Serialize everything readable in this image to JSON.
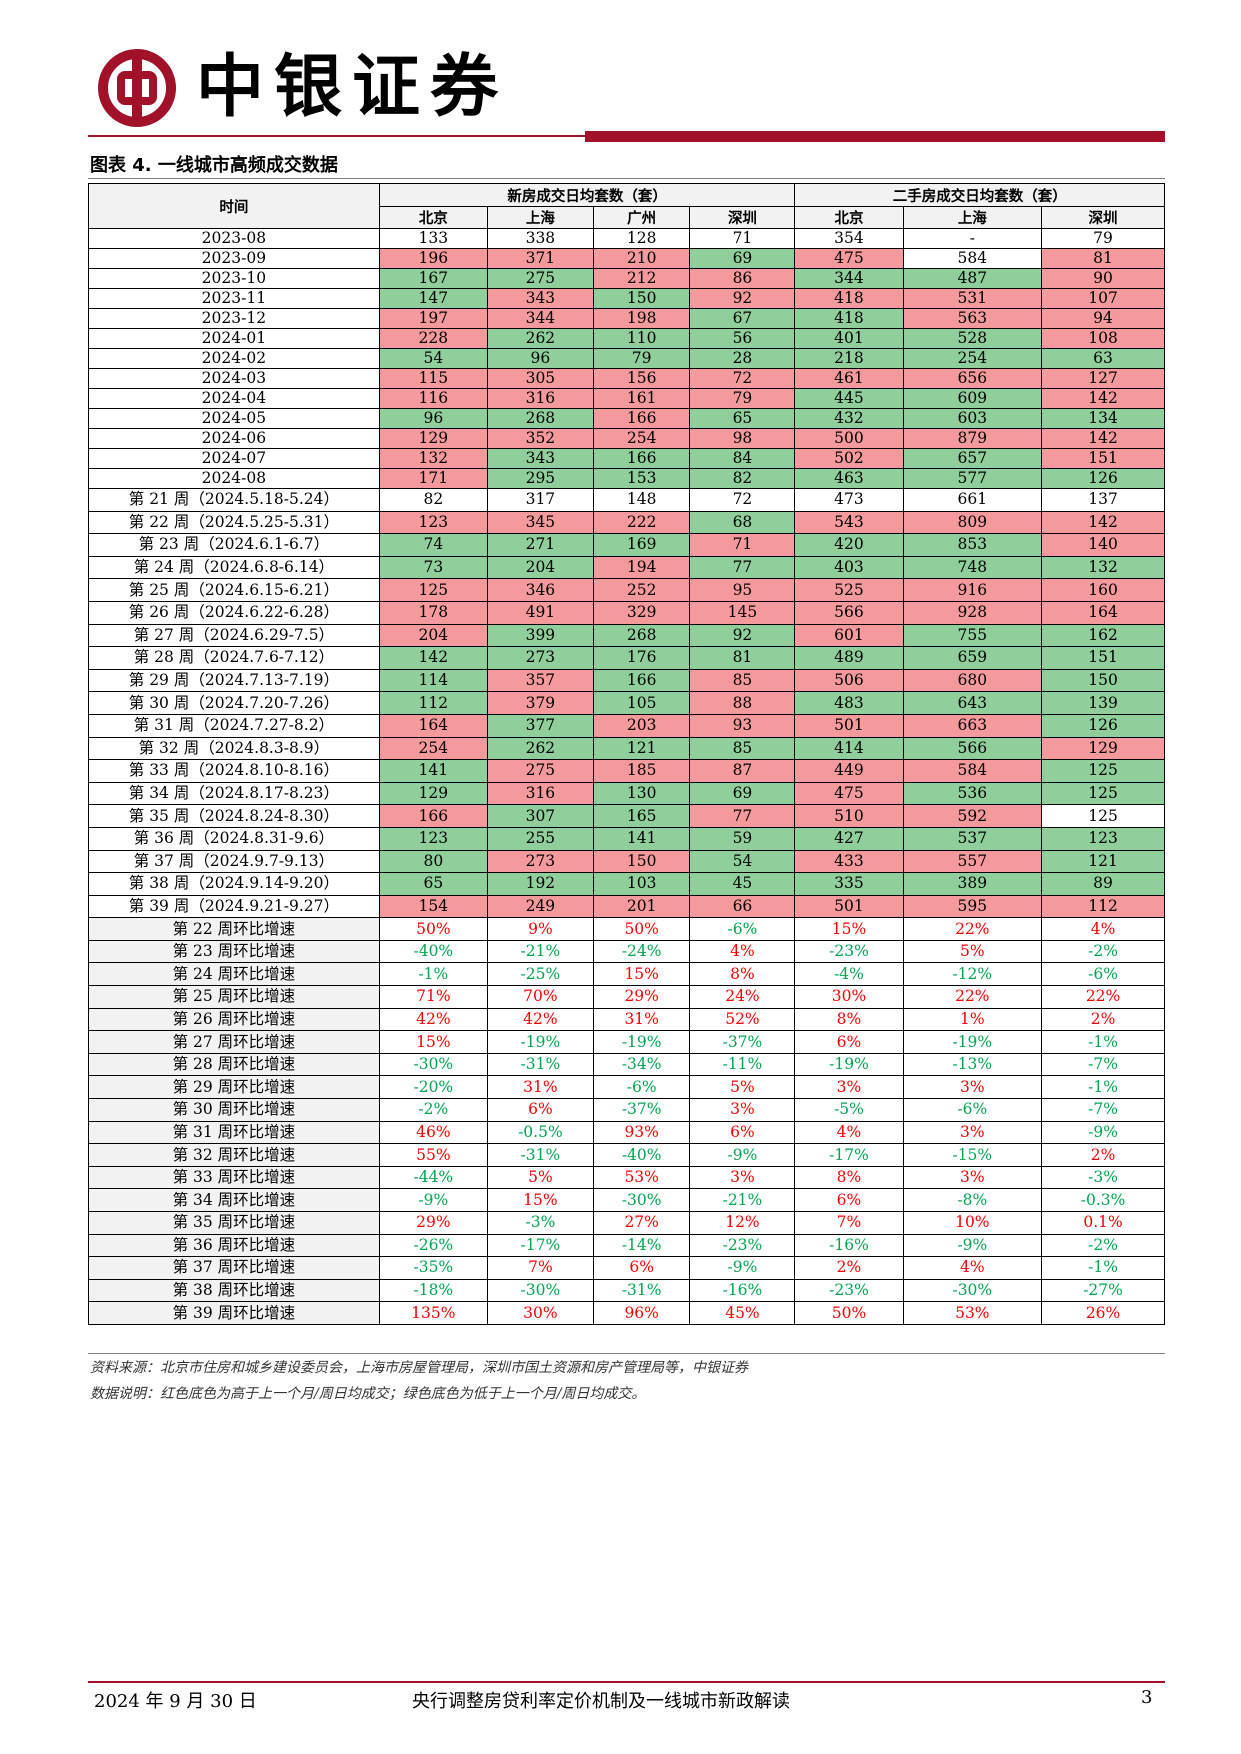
{
  "header": {
    "brand": "中银证券",
    "logo_icon": "bank-of-china-logo-icon",
    "accent_color": "#a1122a"
  },
  "figure": {
    "title": "图表 4. 一线城市高频成交数据"
  },
  "table": {
    "time_header": "时间",
    "group_new": "新房成交日均套数（套）",
    "group_second": "二手房成交日均套数（套）",
    "cities_new": [
      "北京",
      "上海",
      "广州",
      "深圳"
    ],
    "cities_second": [
      "北京",
      "上海",
      "深圳"
    ],
    "colors": {
      "higher": "#f4999c",
      "lower": "#90cf9c",
      "positive_text": "#ff0000",
      "negative_text": "#00a650"
    },
    "monthly": [
      {
        "label": "2023-08",
        "values": [
          "133",
          "338",
          "128",
          "71",
          "354",
          "-",
          "79"
        ],
        "c": "nnnnnnn"
      },
      {
        "label": "2023-09",
        "values": [
          "196",
          "371",
          "210",
          "69",
          "475",
          "584",
          "81"
        ],
        "c": "uuudunu"
      },
      {
        "label": "2023-10",
        "values": [
          "167",
          "275",
          "212",
          "86",
          "344",
          "487",
          "90"
        ],
        "c": "dduuddu"
      },
      {
        "label": "2023-11",
        "values": [
          "147",
          "343",
          "150",
          "92",
          "418",
          "531",
          "107"
        ],
        "c": "duduuuu"
      },
      {
        "label": "2023-12",
        "values": [
          "197",
          "344",
          "198",
          "67",
          "418",
          "563",
          "94"
        ],
        "c": "uuudduu"
      },
      {
        "label": "2024-01",
        "values": [
          "228",
          "262",
          "110",
          "56",
          "401",
          "528",
          "108"
        ],
        "c": "udddddu"
      },
      {
        "label": "2024-02",
        "values": [
          "54",
          "96",
          "79",
          "28",
          "218",
          "254",
          "63"
        ],
        "c": "ddddddd"
      },
      {
        "label": "2024-03",
        "values": [
          "115",
          "305",
          "156",
          "72",
          "461",
          "656",
          "127"
        ],
        "c": "uuuuuuu"
      },
      {
        "label": "2024-04",
        "values": [
          "116",
          "316",
          "161",
          "79",
          "445",
          "609",
          "142"
        ],
        "c": "uuuudduu"
      },
      {
        "label": "2024-05",
        "values": [
          "96",
          "268",
          "166",
          "65",
          "432",
          "603",
          "134"
        ],
        "c": "ddudddd"
      },
      {
        "label": "2024-06",
        "values": [
          "129",
          "352",
          "254",
          "98",
          "500",
          "879",
          "142"
        ],
        "c": "uuuuuuu"
      },
      {
        "label": "2024-07",
        "values": [
          "132",
          "343",
          "166",
          "84",
          "502",
          "657",
          "151"
        ],
        "c": "udddudu"
      },
      {
        "label": "2024-08",
        "values": [
          "171",
          "295",
          "153",
          "82",
          "463",
          "577",
          "126"
        ],
        "c": "udddddd"
      }
    ],
    "weekly": [
      {
        "label": "第 21 周（2024.5.18-5.24）",
        "values": [
          "82",
          "317",
          "148",
          "72",
          "473",
          "661",
          "137"
        ],
        "c": "nnnnnnn"
      },
      {
        "label": "第 22 周（2024.5.25-5.31）",
        "values": [
          "123",
          "345",
          "222",
          "68",
          "543",
          "809",
          "142"
        ],
        "c": "uuudu uu"
      },
      {
        "label": "第 23 周（2024.6.1-6.7）",
        "values": [
          "74",
          "271",
          "169",
          "71",
          "420",
          "853",
          "140"
        ],
        "c": "ddduddud"
      },
      {
        "label": "第 24 周（2024.6.8-6.14）",
        "values": [
          "73",
          "204",
          "194",
          "77",
          "403",
          "748",
          "132"
        ],
        "c": "ddudddd"
      },
      {
        "label": "第 25 周（2024.6.15-6.21）",
        "values": [
          "125",
          "346",
          "252",
          "95",
          "525",
          "916",
          "160"
        ],
        "c": "uuuuuuu"
      },
      {
        "label": "第 26 周（2024.6.22-6.28）",
        "values": [
          "178",
          "491",
          "329",
          "145",
          "566",
          "928",
          "164"
        ],
        "c": "uuuuuuu"
      },
      {
        "label": "第 27 周（2024.6.29-7.5）",
        "values": [
          "204",
          "399",
          "268",
          "92",
          "601",
          "755",
          "162"
        ],
        "c": "uddduddd"
      },
      {
        "label": "第 28 周（2024.7.6-7.12）",
        "values": [
          "142",
          "273",
          "176",
          "81",
          "489",
          "659",
          "151"
        ],
        "c": "ddddddd"
      },
      {
        "label": "第 29 周（2024.7.13-7.19）",
        "values": [
          "114",
          "357",
          "166",
          "85",
          "506",
          "680",
          "150"
        ],
        "c": "duduuud"
      },
      {
        "label": "第 30 周（2024.7.20-7.26）",
        "values": [
          "112",
          "379",
          "105",
          "88",
          "483",
          "643",
          "139"
        ],
        "c": "dududdd"
      },
      {
        "label": "第 31 周（2024.7.27-8.2）",
        "values": [
          "164",
          "377",
          "203",
          "93",
          "501",
          "663",
          "126"
        ],
        "c": "uduuuud"
      },
      {
        "label": "第 32 周（2024.8.3-8.9）",
        "values": [
          "254",
          "262",
          "121",
          "85",
          "414",
          "566",
          "129"
        ],
        "c": "udddddu"
      },
      {
        "label": "第 33 周（2024.8.10-8.16）",
        "values": [
          "141",
          "275",
          "185",
          "87",
          "449",
          "584",
          "125"
        ],
        "c": "duuuuud"
      },
      {
        "label": "第 34 周（2024.8.17-8.23）",
        "values": [
          "129",
          "316",
          "130",
          "69",
          "475",
          "536",
          "125"
        ],
        "c": "dudduddd"
      },
      {
        "label": "第 35 周（2024.8.24-8.30）",
        "values": [
          "166",
          "307",
          "165",
          "77",
          "510",
          "592",
          "125"
        ],
        "c": "udduuun"
      },
      {
        "label": "第 36 周（2024.8.31-9.6）",
        "values": [
          "123",
          "255",
          "141",
          "59",
          "427",
          "537",
          "123"
        ],
        "c": "ddddddd"
      },
      {
        "label": "第 37 周（2024.9.7-9.13）",
        "values": [
          "80",
          "273",
          "150",
          "54",
          "433",
          "557",
          "121"
        ],
        "c": "duuduud"
      },
      {
        "label": "第 38 周（2024.9.14-9.20）",
        "values": [
          "65",
          "192",
          "103",
          "45",
          "335",
          "389",
          "89"
        ],
        "c": "ddddddd"
      },
      {
        "label": "第 39 周（2024.9.21-9.27）",
        "values": [
          "154",
          "249",
          "201",
          "66",
          "501",
          "595",
          "112"
        ],
        "c": "uuuuuuu"
      }
    ],
    "growth": [
      {
        "label": "第 22 周环比增速",
        "values": [
          "50%",
          "9%",
          "50%",
          "-6%",
          "15%",
          "22%",
          "4%"
        ]
      },
      {
        "label": "第 23 周环比增速",
        "values": [
          "-40%",
          "-21%",
          "-24%",
          "4%",
          "-23%",
          "5%",
          "-2%"
        ]
      },
      {
        "label": "第 24 周环比增速",
        "values": [
          "-1%",
          "-25%",
          "15%",
          "8%",
          "-4%",
          "-12%",
          "-6%"
        ]
      },
      {
        "label": "第 25 周环比增速",
        "values": [
          "71%",
          "70%",
          "29%",
          "24%",
          "30%",
          "22%",
          "22%"
        ]
      },
      {
        "label": "第 26 周环比增速",
        "values": [
          "42%",
          "42%",
          "31%",
          "52%",
          "8%",
          "1%",
          "2%"
        ]
      },
      {
        "label": "第 27 周环比增速",
        "values": [
          "15%",
          "-19%",
          "-19%",
          "-37%",
          "6%",
          "-19%",
          "-1%"
        ]
      },
      {
        "label": "第 28 周环比增速",
        "values": [
          "-30%",
          "-31%",
          "-34%",
          "-11%",
          "-19%",
          "-13%",
          "-7%"
        ]
      },
      {
        "label": "第 29 周环比增速",
        "values": [
          "-20%",
          "31%",
          "-6%",
          "5%",
          "3%",
          "3%",
          "-1%"
        ]
      },
      {
        "label": "第 30 周环比增速",
        "values": [
          "-2%",
          "6%",
          "-37%",
          "3%",
          "-5%",
          "-6%",
          "-7%"
        ]
      },
      {
        "label": "第 31 周环比增速",
        "values": [
          "46%",
          "-0.5%",
          "93%",
          "6%",
          "4%",
          "3%",
          "-9%"
        ]
      },
      {
        "label": "第 32 周环比增速",
        "values": [
          "55%",
          "-31%",
          "-40%",
          "-9%",
          "-17%",
          "-15%",
          "2%"
        ]
      },
      {
        "label": "第 33 周环比增速",
        "values": [
          "-44%",
          "5%",
          "53%",
          "3%",
          "8%",
          "3%",
          "-3%"
        ]
      },
      {
        "label": "第 34 周环比增速",
        "values": [
          "-9%",
          "15%",
          "-30%",
          "-21%",
          "6%",
          "-8%",
          "-0.3%"
        ]
      },
      {
        "label": "第 35 周环比增速",
        "values": [
          "29%",
          "-3%",
          "27%",
          "12%",
          "7%",
          "10%",
          "0.1%"
        ]
      },
      {
        "label": "第 36 周环比增速",
        "values": [
          "-26%",
          "-17%",
          "-14%",
          "-23%",
          "-16%",
          "-9%",
          "-2%"
        ]
      },
      {
        "label": "第 37 周环比增速",
        "values": [
          "-35%",
          "7%",
          "6%",
          "-9%",
          "2%",
          "4%",
          "-1%"
        ]
      },
      {
        "label": "第 38 周环比增速",
        "values": [
          "-18%",
          "-30%",
          "-31%",
          "-16%",
          "-23%",
          "-30%",
          "-27%"
        ]
      },
      {
        "label": "第 39 周环比增速",
        "values": [
          "135%",
          "30%",
          "96%",
          "45%",
          "50%",
          "53%",
          "26%"
        ]
      }
    ]
  },
  "notes": {
    "source": "资料来源：北京市住房和城乡建设委员会，上海市房屋管理局，深圳市国土资源和房产管理局等，中银证券",
    "description": "数据说明：红色底色为高于上一个月/周日均成交；绿色底色为低于上一个月/周日均成交。"
  },
  "footer": {
    "date": "2024 年 9 月 30 日",
    "report_title": "央行调整房贷利率定价机制及一线城市新政解读",
    "page": "3"
  }
}
